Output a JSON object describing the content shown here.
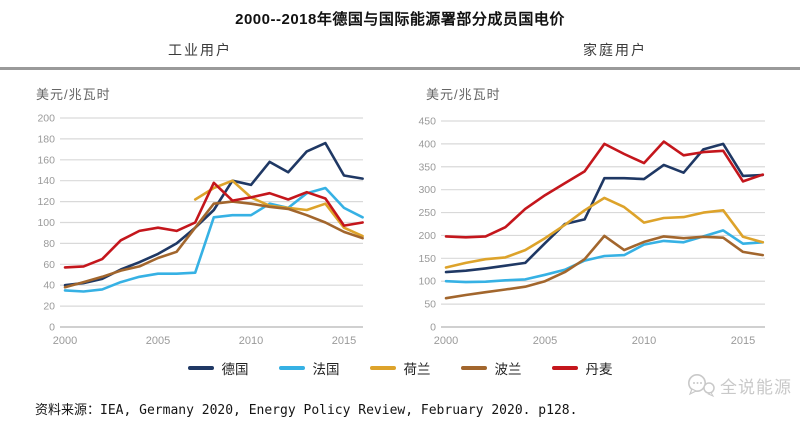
{
  "title": "2000--2018年德国与国际能源署部分成员国电价",
  "subtitle_left": "工业用户",
  "subtitle_right": "家庭用户",
  "source": "资料来源：IEA, Germany 2020, Energy Policy Review, February 2020. p128.",
  "watermark": "全说能源",
  "colors": {
    "germany": "#1f3864",
    "france": "#36b1e4",
    "netherlands": "#dda32b",
    "poland": "#a2662d",
    "denmark": "#c4161c",
    "gridline": "#d9d9d9",
    "axis": "#b3b3b3",
    "tick_text": "#9a9a9a"
  },
  "legend": [
    {
      "key": "germany",
      "label": "德国",
      "color": "#1f3864"
    },
    {
      "key": "france",
      "label": "法国",
      "color": "#36b1e4"
    },
    {
      "key": "netherlands",
      "label": "荷兰",
      "color": "#dda32b"
    },
    {
      "key": "poland",
      "label": "波兰",
      "color": "#a2662d"
    },
    {
      "key": "denmark",
      "label": "丹麦",
      "color": "#c4161c"
    }
  ],
  "chart_data": [
    {
      "type": "line",
      "title": "工业用户",
      "ylabel": "美元/兆瓦时",
      "x": [
        2000,
        2001,
        2002,
        2003,
        2004,
        2005,
        2006,
        2007,
        2008,
        2009,
        2010,
        2011,
        2012,
        2013,
        2014,
        2015,
        2016
      ],
      "x_ticks": [
        2000,
        2005,
        2010,
        2015
      ],
      "ylim": [
        0,
        200
      ],
      "y_step": 20,
      "grid": true,
      "legend_position": "bottom",
      "series": [
        {
          "name": "德国",
          "key": "germany",
          "color": "#1f3864",
          "values": [
            40,
            42,
            46,
            55,
            62,
            70,
            80,
            95,
            112,
            140,
            136,
            158,
            148,
            168,
            176,
            145,
            142
          ]
        },
        {
          "name": "法国",
          "key": "france",
          "color": "#36b1e4",
          "values": [
            35,
            34,
            36,
            43,
            48,
            51,
            51,
            52,
            105,
            107,
            107,
            118,
            114,
            128,
            133,
            114,
            105
          ]
        },
        {
          "name": "荷兰",
          "key": "netherlands",
          "color": "#dda32b",
          "values": [
            null,
            null,
            null,
            null,
            null,
            null,
            null,
            122,
            133,
            140,
            124,
            116,
            114,
            112,
            118,
            95,
            87
          ]
        },
        {
          "name": "波兰",
          "key": "poland",
          "color": "#a2662d",
          "values": [
            38,
            43,
            48,
            54,
            58,
            66,
            72,
            95,
            118,
            120,
            118,
            115,
            113,
            107,
            100,
            91,
            85
          ]
        },
        {
          "name": "丹麦",
          "key": "denmark",
          "color": "#c4161c",
          "values": [
            57,
            58,
            65,
            83,
            92,
            95,
            92,
            100,
            138,
            121,
            124,
            128,
            122,
            129,
            123,
            97,
            100
          ]
        }
      ]
    },
    {
      "type": "line",
      "title": "家庭用户",
      "ylabel": "美元/兆瓦时",
      "x": [
        2000,
        2001,
        2002,
        2003,
        2004,
        2005,
        2006,
        2007,
        2008,
        2009,
        2010,
        2011,
        2012,
        2013,
        2014,
        2015,
        2016
      ],
      "x_ticks": [
        2000,
        2005,
        2010,
        2015
      ],
      "ylim": [
        0,
        450
      ],
      "y_step": 50,
      "grid": true,
      "legend_position": "bottom",
      "series": [
        {
          "name": "德国",
          "key": "germany",
          "color": "#1f3864",
          "values": [
            120,
            123,
            128,
            134,
            140,
            183,
            225,
            235,
            325,
            325,
            323,
            354,
            337,
            388,
            400,
            330,
            332
          ]
        },
        {
          "name": "法国",
          "key": "france",
          "color": "#36b1e4",
          "values": [
            100,
            98,
            99,
            102,
            104,
            114,
            125,
            145,
            155,
            157,
            180,
            188,
            185,
            198,
            211,
            182,
            185
          ]
        },
        {
          "name": "荷兰",
          "key": "netherlands",
          "color": "#dda32b",
          "values": [
            130,
            140,
            148,
            152,
            168,
            194,
            223,
            255,
            282,
            262,
            228,
            238,
            240,
            250,
            255,
            197,
            185
          ]
        },
        {
          "name": "波兰",
          "key": "poland",
          "color": "#a2662d",
          "values": [
            63,
            70,
            76,
            82,
            88,
            100,
            120,
            148,
            199,
            168,
            186,
            198,
            194,
            197,
            195,
            164,
            157
          ]
        },
        {
          "name": "丹麦",
          "key": "denmark",
          "color": "#c4161c",
          "values": [
            198,
            196,
            198,
            218,
            258,
            288,
            314,
            340,
            400,
            378,
            358,
            405,
            375,
            382,
            385,
            318,
            333
          ]
        }
      ]
    }
  ]
}
